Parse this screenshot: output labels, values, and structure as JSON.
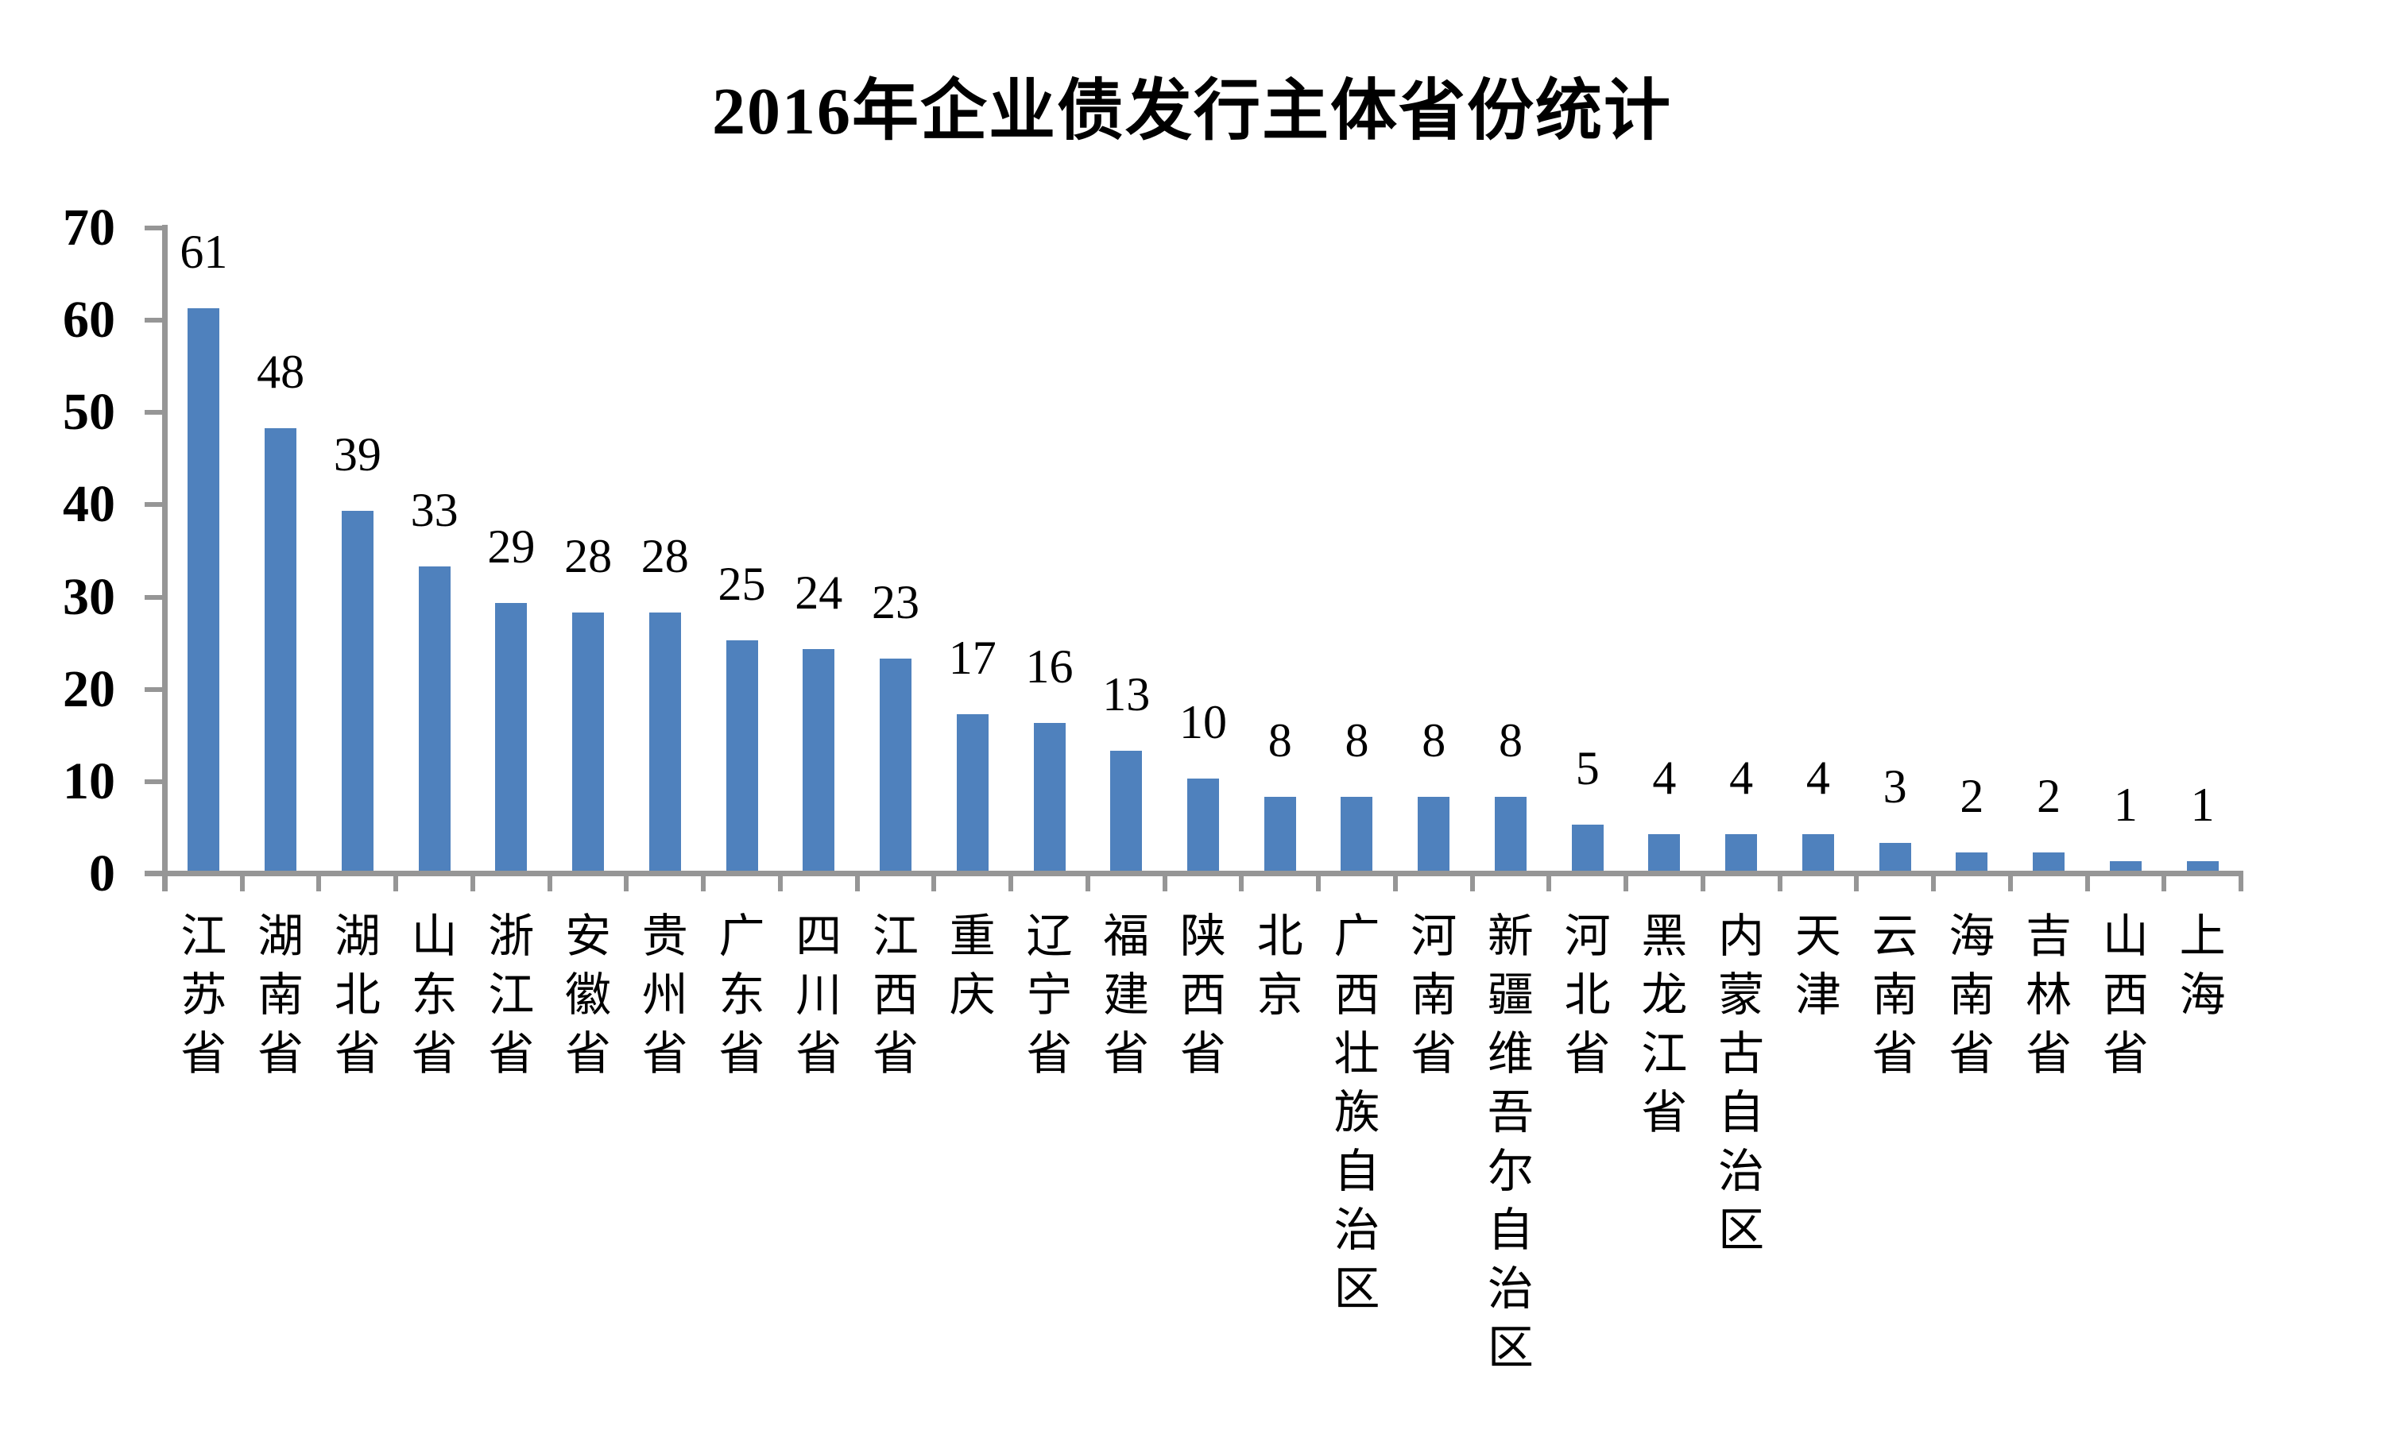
{
  "chart_data": {
    "type": "bar",
    "title": "2016年企业债发行主体省份统计",
    "categories": [
      "江苏省",
      "湖南省",
      "湖北省",
      "山东省",
      "浙江省",
      "安徽省",
      "贵州省",
      "广东省",
      "四川省",
      "江西省",
      "重庆",
      "辽宁省",
      "福建省",
      "陕西省",
      "北京",
      "广西壮族自治区",
      "河南省",
      "新疆维吾尔自治区",
      "河北省",
      "黑龙江省",
      "内蒙古自治区",
      "天津",
      "云南省",
      "海南省",
      "吉林省",
      "山西省",
      "上海"
    ],
    "values": [
      61,
      48,
      39,
      33,
      29,
      28,
      28,
      25,
      24,
      23,
      17,
      16,
      13,
      10,
      8,
      8,
      8,
      8,
      5,
      4,
      4,
      4,
      3,
      2,
      2,
      1,
      1
    ],
    "xlabel": "",
    "ylabel": "",
    "ylim": [
      0,
      70
    ],
    "yticks": [
      0,
      10,
      20,
      30,
      40,
      50,
      60,
      70
    ],
    "grid": false,
    "legend_position": "none",
    "data_labels_position": "outside-end",
    "category_label_orientation": "vertical-upright",
    "bar_color": "#4F81BD",
    "axis_color": "#969696",
    "text_color": "#000000",
    "background_color": "#FFFFFF"
  }
}
